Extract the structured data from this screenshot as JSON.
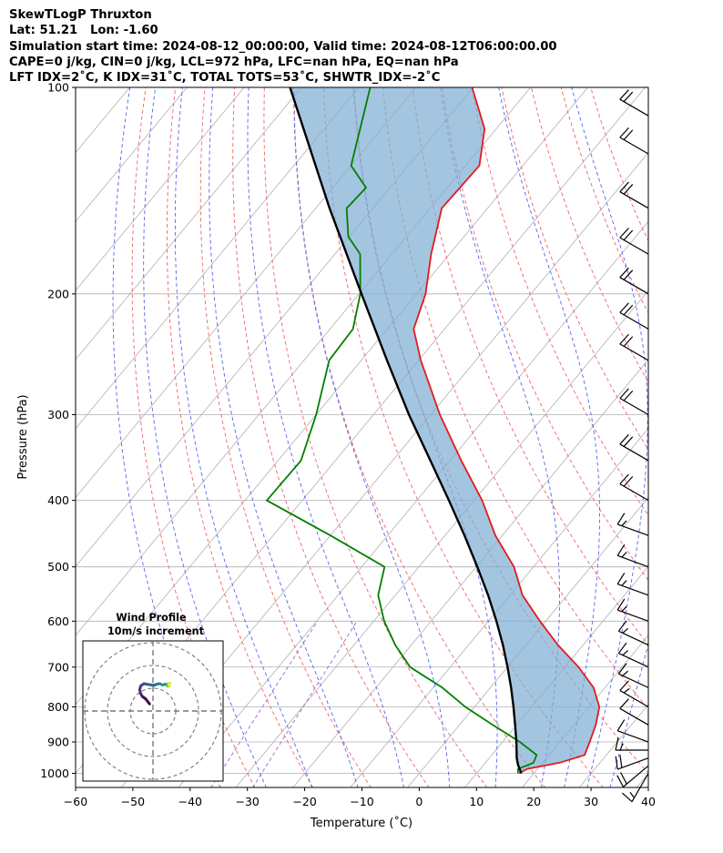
{
  "header": {
    "lines": [
      "SkewTLogP Thruxton",
      "Lat: 51.21   Lon: -1.60",
      "Simulation start time: 2024-08-12_00:00:00, Valid time: 2024-08-12T06:00:00.00",
      "CAPE=0 j/kg, CIN=0 j/kg, LCL=972 hPa, LFC=nan hPa, EQ=nan hPa",
      "LFT IDX=2˚C, K IDX=31˚C, TOTAL TOTS=53˚C, SHWTR_IDX=-2˚C"
    ]
  },
  "chart_data": {
    "type": "line",
    "subtype": "skew-t-log-p",
    "xlabel": "Temperature (˚C)",
    "ylabel": "Pressure (hPa)",
    "x_ticks": [
      -60,
      -50,
      -40,
      -30,
      -20,
      -10,
      0,
      10,
      20,
      30,
      40
    ],
    "y_ticks": [
      100,
      200,
      300,
      400,
      500,
      600,
      700,
      800,
      900,
      1000
    ],
    "xlim": [
      -60,
      40
    ],
    "ylim": [
      1050,
      100
    ],
    "grid": true,
    "colors": {
      "temperature": "#e41a1c",
      "dewpoint": "#008000",
      "parcel": "#000000",
      "cape_fill": "#7fafd4",
      "dry_adiabat": "#ee6666",
      "moist_adiabat": "#5566ee",
      "mixing_ratio": "#9966cc",
      "isotherm": "#b0b0b0"
    },
    "series": [
      {
        "key": "temperature",
        "pressure": [
          1000,
          985,
          965,
          940,
          900,
          850,
          800,
          750,
          700,
          650,
          600,
          550,
          500,
          450,
          400,
          350,
          300,
          250,
          225,
          200,
          175,
          150,
          130,
          115,
          100
        ],
        "temperature": [
          17.4,
          18.2,
          23.0,
          26.2,
          25.2,
          23.8,
          21.8,
          18.0,
          12.4,
          5.6,
          -1.0,
          -7.8,
          -13.4,
          -21.2,
          -28.6,
          -38.0,
          -48.4,
          -59.6,
          -65.4,
          -68.4,
          -73.2,
          -78.0,
          -77.6,
          -82.0,
          -90.2
        ]
      },
      {
        "key": "dewpoint",
        "pressure": [
          1000,
          985,
          965,
          940,
          900,
          850,
          800,
          750,
          700,
          650,
          600,
          550,
          500,
          450,
          400,
          350,
          300,
          250,
          225,
          200,
          175,
          165,
          150,
          140,
          130,
          100
        ],
        "temperature": [
          17.2,
          16.6,
          18.4,
          17.8,
          13.0,
          5.8,
          -1.6,
          -8.4,
          -17.0,
          -22.8,
          -28.2,
          -33.0,
          -36.0,
          -50.0,
          -66.2,
          -66.0,
          -70.0,
          -75.6,
          -76.0,
          -79.8,
          -85.6,
          -90.2,
          -94.6,
          -94.2,
          -100.0,
          -108.0
        ]
      },
      {
        "key": "parcel",
        "pressure": [
          1000,
          972,
          950,
          900,
          850,
          800,
          750,
          700,
          650,
          600,
          550,
          500,
          450,
          400,
          350,
          300,
          250,
          200,
          150,
          100
        ],
        "temperature": [
          17.8,
          16.0,
          14.8,
          12.4,
          9.7,
          6.8,
          3.6,
          0.0,
          -4.0,
          -8.6,
          -13.8,
          -19.8,
          -26.6,
          -34.4,
          -43.4,
          -53.8,
          -65.5,
          -79.6,
          -97.6,
          -122.0
        ]
      }
    ],
    "isopleths": {
      "dry_adiabats_theta_C": [
        -30,
        -20,
        -10,
        0,
        10,
        20,
        30,
        40,
        50,
        60,
        70,
        80,
        90,
        100,
        110,
        120
      ],
      "moist_adiabats_start_1000hPa_C": [
        -32,
        -24,
        -16,
        -8,
        0,
        8,
        16,
        24,
        28,
        32,
        36
      ],
      "mixing_ratio_g_per_kg": [
        0.2,
        0.4
      ]
    },
    "wind_barbs": [
      {
        "pressure": 1000,
        "speed_kt": 15,
        "dir_deg": 210
      },
      {
        "pressure": 975,
        "speed_kt": 20,
        "dir_deg": 230
      },
      {
        "pressure": 950,
        "speed_kt": 20,
        "dir_deg": 250
      },
      {
        "pressure": 925,
        "speed_kt": 15,
        "dir_deg": 270
      },
      {
        "pressure": 900,
        "speed_kt": 10,
        "dir_deg": 290
      },
      {
        "pressure": 850,
        "speed_kt": 10,
        "dir_deg": 300
      },
      {
        "pressure": 800,
        "speed_kt": 15,
        "dir_deg": 300
      },
      {
        "pressure": 750,
        "speed_kt": 15,
        "dir_deg": 295
      },
      {
        "pressure": 700,
        "speed_kt": 15,
        "dir_deg": 295
      },
      {
        "pressure": 650,
        "speed_kt": 15,
        "dir_deg": 295
      },
      {
        "pressure": 600,
        "speed_kt": 15,
        "dir_deg": 290
      },
      {
        "pressure": 550,
        "speed_kt": 15,
        "dir_deg": 290
      },
      {
        "pressure": 500,
        "speed_kt": 15,
        "dir_deg": 290
      },
      {
        "pressure": 450,
        "speed_kt": 15,
        "dir_deg": 290
      },
      {
        "pressure": 400,
        "speed_kt": 20,
        "dir_deg": 300
      },
      {
        "pressure": 350,
        "speed_kt": 20,
        "dir_deg": 300
      },
      {
        "pressure": 300,
        "speed_kt": 20,
        "dir_deg": 300
      },
      {
        "pressure": 250,
        "speed_kt": 20,
        "dir_deg": 300
      },
      {
        "pressure": 225,
        "speed_kt": 20,
        "dir_deg": 300
      },
      {
        "pressure": 200,
        "speed_kt": 20,
        "dir_deg": 300
      },
      {
        "pressure": 175,
        "speed_kt": 20,
        "dir_deg": 300
      },
      {
        "pressure": 150,
        "speed_kt": 20,
        "dir_deg": 300
      },
      {
        "pressure": 125,
        "speed_kt": 20,
        "dir_deg": 300
      },
      {
        "pressure": 110,
        "speed_kt": 20,
        "dir_deg": 300
      }
    ],
    "hodograph": {
      "title_lines": [
        "Wind Profile",
        "10m/s increment"
      ],
      "ring_increment_ms": 10,
      "rings": 3,
      "u": [
        -1.5,
        -3.2,
        -4.7,
        -5.5,
        -5.8,
        -5.4,
        -4.0,
        -1.8,
        0.6,
        1.4,
        2.9,
        4.3,
        5.3,
        6.2,
        6.3,
        6.6,
        7.0,
        7.2,
        6.9,
        6.8,
        7.1,
        7.4,
        7.0
      ],
      "v": [
        3.1,
        5.3,
        6.4,
        7.8,
        9.3,
        11.0,
        12.0,
        11.6,
        11.3,
        11.7,
        12.0,
        11.4,
        11.8,
        11.3,
        11.0,
        11.8,
        12.0,
        11.6,
        10.9,
        11.1,
        11.8,
        12.2,
        11.4
      ]
    }
  }
}
